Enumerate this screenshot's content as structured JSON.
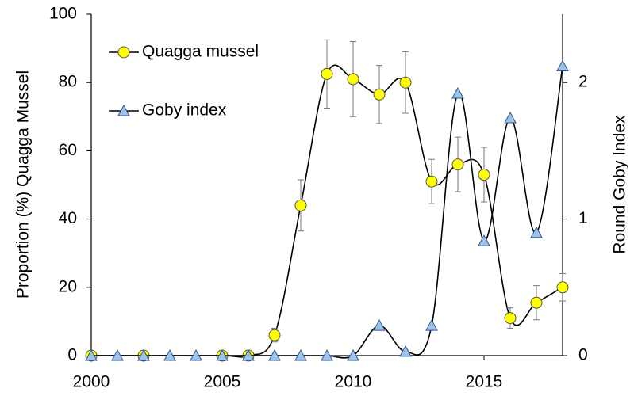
{
  "chart_data": {
    "type": "line",
    "x": [
      2000,
      2001,
      2002,
      2003,
      2004,
      2005,
      2006,
      2007,
      2008,
      2009,
      2010,
      2011,
      2012,
      2013,
      2014,
      2015,
      2016,
      2017,
      2018
    ],
    "series": [
      {
        "name": "Quagga mussel",
        "color": "#ffff00",
        "marker": "circle",
        "axis": "y",
        "x": [
          2000,
          2002,
          2005,
          2006,
          2007,
          2008,
          2009,
          2010,
          2011,
          2012,
          2013,
          2014,
          2015,
          2016,
          2017,
          2018
        ],
        "values": [
          0,
          0,
          0,
          0,
          6,
          44,
          82.5,
          81,
          76.5,
          80,
          51,
          56,
          53,
          11,
          15.5,
          20
        ],
        "errors": [
          0,
          0,
          0,
          0,
          2,
          7.5,
          10,
          11,
          8.5,
          9,
          6.5,
          8,
          8,
          3,
          5,
          4
        ]
      },
      {
        "name": "Goby index",
        "color": "#9dc3e6",
        "marker": "triangle",
        "axis": "y2",
        "x": [
          2000,
          2001,
          2002,
          2003,
          2004,
          2005,
          2006,
          2007,
          2008,
          2009,
          2010,
          2011,
          2012,
          2013,
          2014,
          2015,
          2016,
          2017,
          2018
        ],
        "values": [
          0,
          0,
          0,
          0,
          0,
          0,
          0,
          0,
          0,
          0,
          0,
          0.22,
          0.03,
          0.22,
          1.92,
          0.84,
          1.74,
          0.9,
          2.12
        ]
      }
    ],
    "ylabel": "Proportion (%) Quagga Mussel",
    "y2label": "Round Goby Index",
    "xlim": [
      2000,
      2018
    ],
    "xticks": [
      2000,
      2005,
      2010,
      2015
    ],
    "ylim": [
      0,
      100
    ],
    "yticks": [
      0,
      20,
      40,
      60,
      80,
      100
    ],
    "y2lim": [
      0,
      2.5
    ],
    "y2ticks": [
      0,
      1,
      2
    ],
    "legend": "upper left",
    "grid": false
  }
}
